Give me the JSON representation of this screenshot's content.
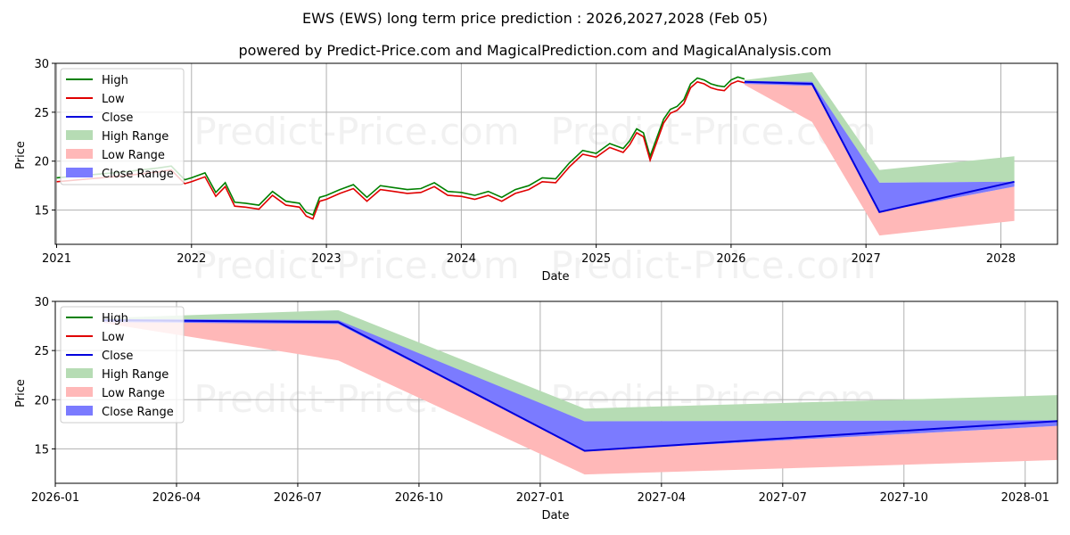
{
  "title": "EWS (EWS) long term price prediction : 2026,2027,2028 (Feb 05)",
  "subtitle": "powered by Predict-Price.com and MagicalPrediction.com and MagicalAnalysis.com",
  "watermark": "Predict-Price.com",
  "colors": {
    "high": "#008000",
    "low": "#e00000",
    "close": "#0000dd",
    "high_range": "#b6dcb4",
    "low_range": "#ffb8b8",
    "close_range": "#7b7bff"
  },
  "legend": {
    "high": "High",
    "low": "Low",
    "close": "Close",
    "high_range": "High Range",
    "low_range": "Low Range",
    "close_range": "Close Range"
  },
  "chart_data": [
    {
      "type": "line",
      "name": "top-chart",
      "xlabel": "Date",
      "ylabel": "Price",
      "ylim": [
        11.5,
        30
      ],
      "xlim": [
        2020.99,
        2028.42
      ],
      "yticks": [
        15,
        20,
        25,
        30
      ],
      "xticks": [
        {
          "value": 2021.0,
          "label": "2021"
        },
        {
          "value": 2022.0,
          "label": "2022"
        },
        {
          "value": 2023.0,
          "label": "2023"
        },
        {
          "value": 2024.0,
          "label": "2024"
        },
        {
          "value": 2025.0,
          "label": "2025"
        },
        {
          "value": 2026.0,
          "label": "2026"
        },
        {
          "value": 2027.0,
          "label": "2027"
        },
        {
          "value": 2028.0,
          "label": "2028"
        }
      ],
      "history": {
        "x": [
          2021.0,
          2021.25,
          2021.5,
          2021.75,
          2021.85,
          2021.95,
          2022.0,
          2022.1,
          2022.18,
          2022.25,
          2022.32,
          2022.4,
          2022.5,
          2022.6,
          2022.7,
          2022.8,
          2022.85,
          2022.9,
          2022.95,
          2023.0,
          2023.1,
          2023.2,
          2023.3,
          2023.4,
          2023.5,
          2023.6,
          2023.7,
          2023.8,
          2023.9,
          2024.0,
          2024.1,
          2024.2,
          2024.3,
          2024.4,
          2024.5,
          2024.6,
          2024.7,
          2024.8,
          2024.9,
          2025.0,
          2025.1,
          2025.2,
          2025.25,
          2025.27,
          2025.3,
          2025.35,
          2025.4,
          2025.5,
          2025.55,
          2025.6,
          2025.65,
          2025.7,
          2025.75,
          2025.8,
          2025.85,
          2025.9,
          2025.95,
          2026.0,
          2026.05,
          2026.1
        ],
        "close": [
          18.0,
          18.3,
          18.6,
          19.0,
          19.2,
          17.8,
          18.0,
          18.5,
          16.5,
          17.5,
          15.5,
          15.4,
          15.2,
          16.6,
          15.6,
          15.4,
          14.5,
          14.2,
          16.0,
          16.2,
          16.8,
          17.3,
          16.0,
          17.2,
          17.0,
          16.8,
          16.9,
          17.5,
          16.6,
          16.5,
          16.2,
          16.6,
          16.0,
          16.8,
          17.2,
          18.0,
          17.9,
          19.5,
          20.8,
          20.5,
          21.5,
          21.0,
          21.8,
          22.3,
          23.0,
          22.6,
          20.2,
          24.0,
          25.0,
          25.3,
          26.0,
          27.6,
          28.2,
          28.0,
          27.6,
          27.4,
          27.3,
          28.0,
          28.3,
          28.1
        ]
      },
      "forecast": {
        "x": [
          2026.1,
          2026.6,
          2027.1,
          2028.1
        ],
        "close": [
          28.1,
          27.9,
          14.8,
          17.9
        ],
        "high_range": {
          "upper": [
            28.3,
            29.1,
            19.1,
            20.5
          ],
          "lower": [
            28.0,
            27.9,
            17.8,
            17.9
          ]
        },
        "close_range": {
          "upper": [
            28.2,
            28.1,
            17.8,
            17.9
          ],
          "lower": [
            27.9,
            27.7,
            14.8,
            17.4
          ]
        },
        "low_range": {
          "upper": [
            28.0,
            27.7,
            14.8,
            17.4
          ],
          "lower": [
            27.8,
            24.0,
            12.4,
            13.9
          ]
        }
      }
    },
    {
      "type": "line",
      "name": "bottom-chart",
      "xlabel": "Date",
      "ylabel": "Price",
      "ylim": [
        11.5,
        30
      ],
      "xlim": [
        0.0,
        24.8
      ],
      "yticks": [
        15,
        20,
        25,
        30
      ],
      "xticks": [
        {
          "value": 0,
          "label": "2026-01"
        },
        {
          "value": 3,
          "label": "2026-04"
        },
        {
          "value": 6,
          "label": "2026-07"
        },
        {
          "value": 9,
          "label": "2026-10"
        },
        {
          "value": 12,
          "label": "2027-01"
        },
        {
          "value": 15,
          "label": "2027-04"
        },
        {
          "value": 18,
          "label": "2027-07"
        },
        {
          "value": 21,
          "label": "2027-10"
        },
        {
          "value": 24,
          "label": "2028-01"
        }
      ],
      "forecast": {
        "x": [
          1.2,
          7.0,
          13.1,
          25.1
        ],
        "close": [
          28.1,
          27.9,
          14.8,
          17.9
        ],
        "high_range": {
          "upper": [
            28.3,
            29.1,
            19.1,
            20.5
          ],
          "lower": [
            28.0,
            27.9,
            17.8,
            17.9
          ]
        },
        "close_range": {
          "upper": [
            28.2,
            28.1,
            17.8,
            17.9
          ],
          "lower": [
            27.9,
            27.7,
            14.8,
            17.4
          ]
        },
        "low_range": {
          "upper": [
            28.0,
            27.7,
            14.8,
            17.4
          ],
          "lower": [
            27.8,
            24.0,
            12.4,
            13.9
          ]
        }
      }
    }
  ]
}
